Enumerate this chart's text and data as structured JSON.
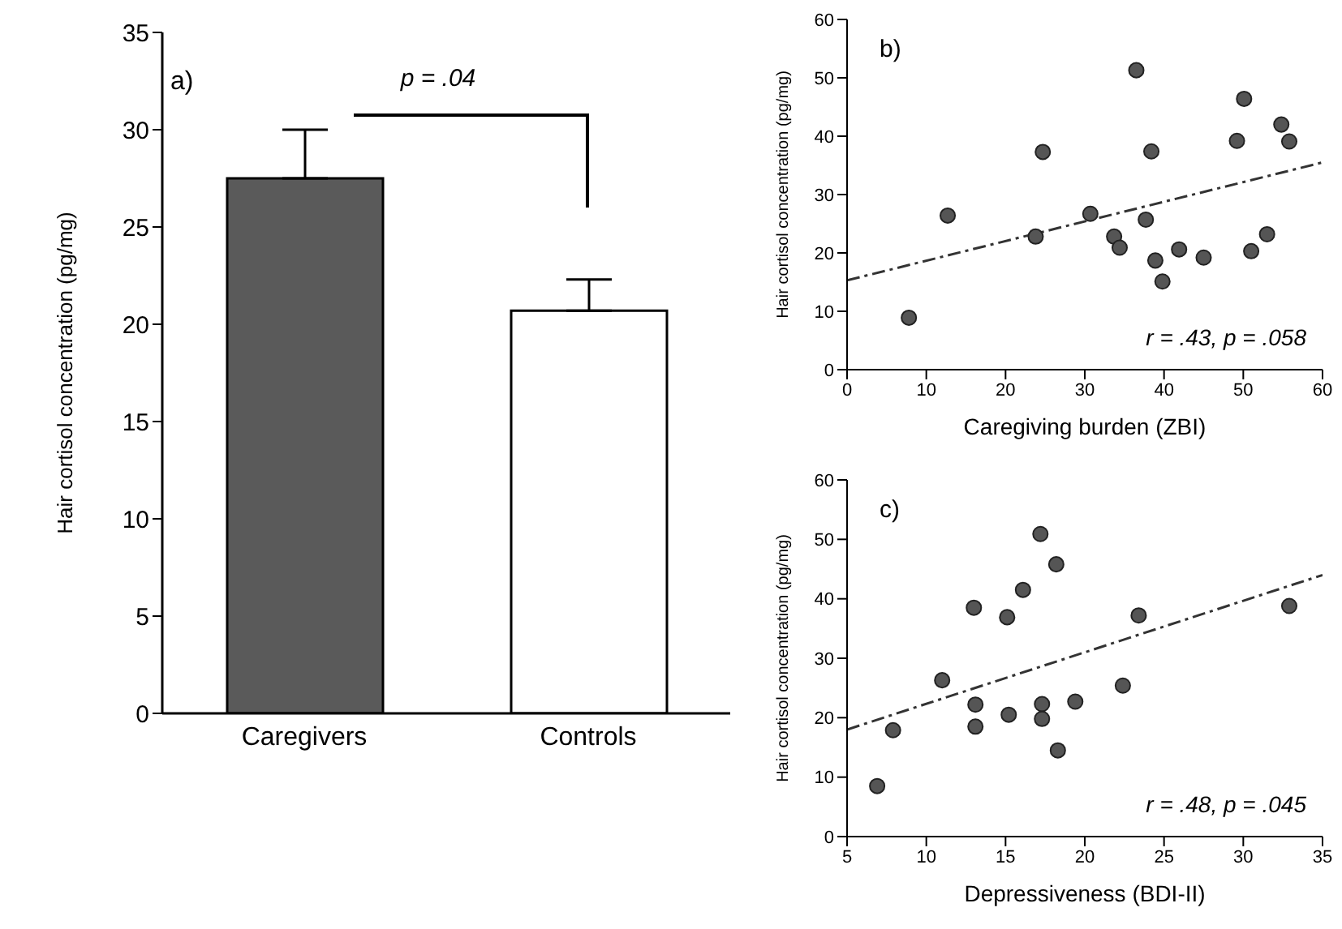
{
  "chart_data": [
    {
      "type": "bar",
      "ylabel": "Hair cortisol concentration (pg/mg)",
      "categories": [
        "Caregivers",
        "Controls"
      ],
      "values": [
        27.5,
        20.7
      ],
      "colors": [
        "#5a5a5a",
        "#ffffff"
      ],
      "errors": [
        [
          27.5,
          30.0
        ],
        [
          20.7,
          22.3
        ]
      ],
      "ylim": [
        0,
        35
      ],
      "yticks": [
        0,
        5,
        10,
        15,
        20,
        25,
        30,
        35
      ],
      "grid": false,
      "legend": false,
      "annotations": [
        "a)",
        "p = .04"
      ]
    },
    {
      "type": "scatter",
      "xlabel": "Caregiving burden (ZBI)",
      "ylabel": "Hair cortisol concentration (pg/mg)",
      "xlim": [
        0,
        60
      ],
      "xticks": [
        0,
        10,
        20,
        30,
        40,
        50,
        60
      ],
      "ylim": [
        0,
        60
      ],
      "yticks": [
        0,
        10,
        20,
        30,
        40,
        50,
        60
      ],
      "grid": false,
      "legend": false,
      "annotations": [
        "b)",
        "r = .43, p = .058"
      ],
      "series": [
        {
          "type": "scatter",
          "color": "#555555",
          "marker": "circle",
          "x": [
            7.8,
            12.7,
            23.8,
            24.7,
            30.7,
            33.7,
            34.4,
            36.5,
            37.7,
            38.4,
            38.9,
            39.8,
            41.9,
            45,
            49.2,
            50.1,
            51,
            53,
            54.8,
            55.8
          ],
          "values": [
            8.9,
            26.4,
            22.8,
            37.3,
            26.7,
            22.8,
            20.9,
            51.3,
            25.7,
            37.4,
            18.7,
            15.1,
            20.6,
            19.2,
            39.2,
            46.4,
            20.3,
            23.2,
            42,
            39.1
          ]
        },
        {
          "type": "line",
          "color": "#333333",
          "line_style": "dashed",
          "marker": "none",
          "x": [
            0,
            60
          ],
          "values": [
            15.3,
            35.5
          ]
        }
      ]
    },
    {
      "type": "scatter",
      "xlabel": "Depressiveness (BDI-II)",
      "ylabel": "Hair cortisol concentration (pg/mg)",
      "xlim": [
        5,
        35
      ],
      "xticks": [
        5,
        10,
        15,
        20,
        25,
        30,
        35
      ],
      "ylim": [
        0,
        60
      ],
      "yticks": [
        0,
        10,
        20,
        30,
        40,
        50,
        60
      ],
      "grid": false,
      "legend": false,
      "annotations": [
        "c)",
        "r = .48, p = .045"
      ],
      "series": [
        {
          "type": "scatter",
          "color": "#555555",
          "marker": "circle",
          "x": [
            6.9,
            7.9,
            11,
            13,
            13.1,
            13.1,
            15.1,
            15.2,
            16.1,
            17.2,
            17.3,
            17.3,
            18.2,
            18.3,
            19.4,
            22.4,
            23.4,
            32.9
          ],
          "values": [
            8.5,
            17.9,
            26.3,
            38.5,
            22.2,
            18.5,
            36.9,
            20.5,
            41.5,
            50.9,
            22.3,
            19.8,
            45.8,
            14.5,
            22.7,
            25.4,
            37.2,
            38.8
          ]
        },
        {
          "type": "line",
          "color": "#333333",
          "line_style": "dashed",
          "marker": "none",
          "x": [
            5,
            35
          ],
          "values": [
            18,
            44
          ]
        }
      ]
    }
  ]
}
